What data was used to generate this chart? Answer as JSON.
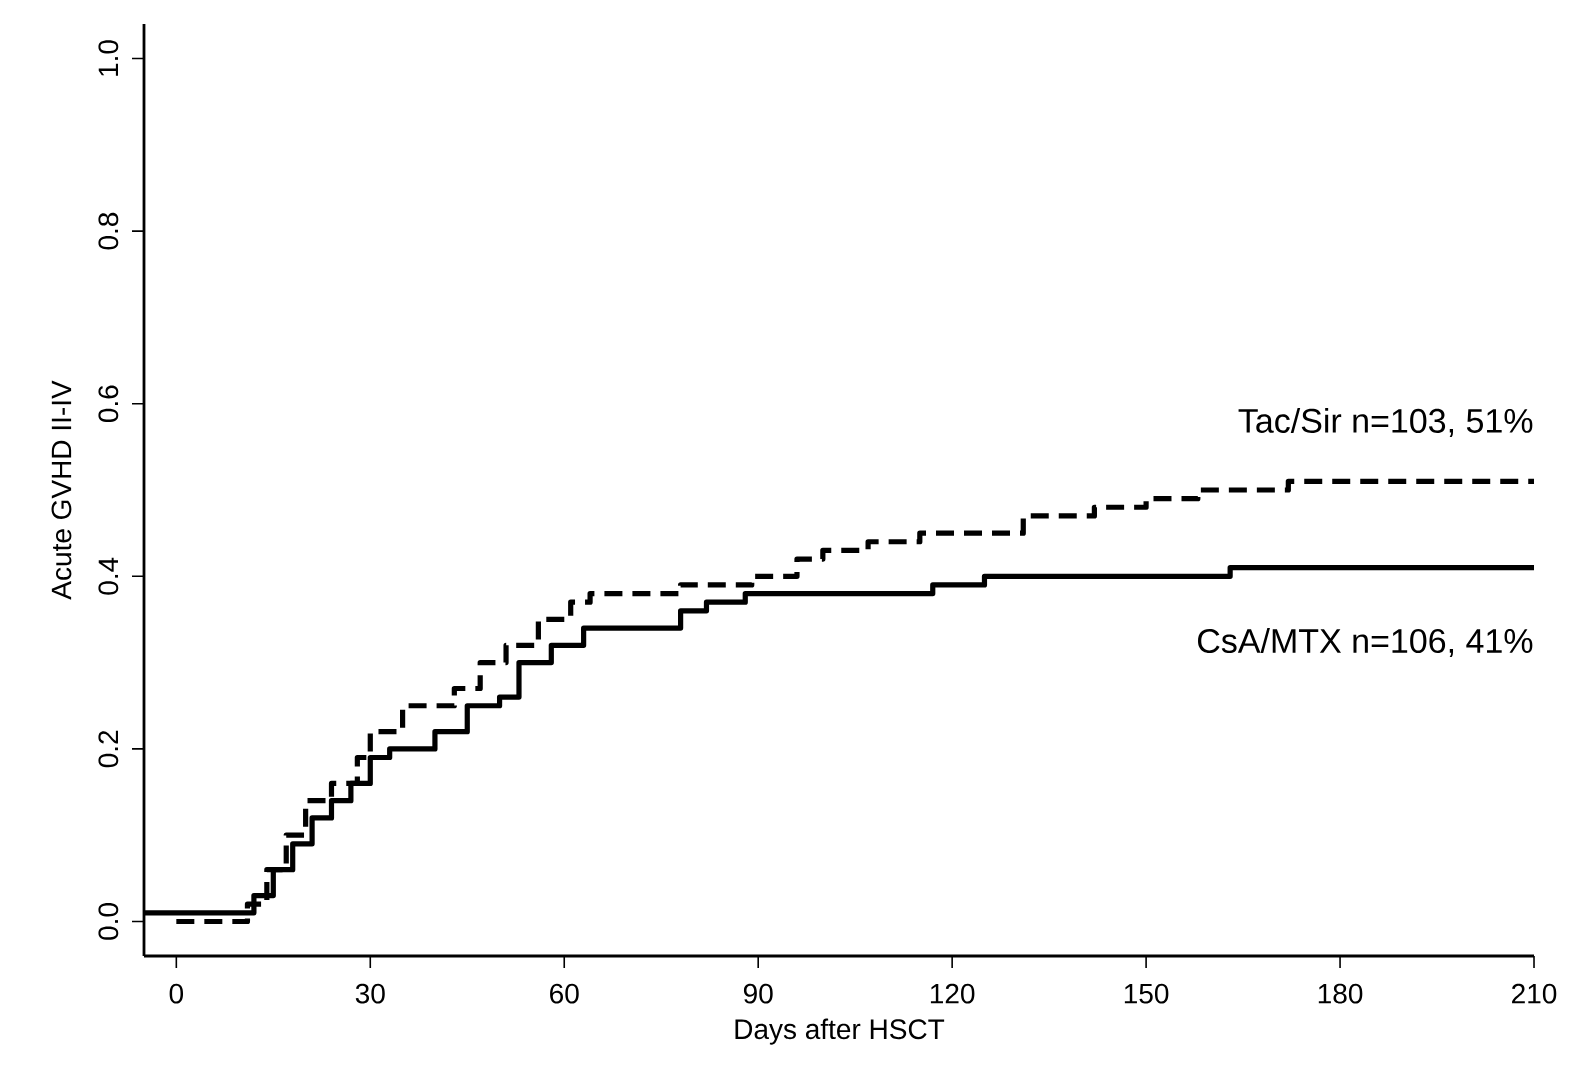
{
  "chart_data": {
    "type": "step",
    "xlabel": "Days after HSCT",
    "ylabel": "Acute GVHD II-IV",
    "xlim": [
      -5,
      210
    ],
    "ylim": [
      -0.04,
      1.04
    ],
    "xticks": [
      0,
      30,
      60,
      90,
      120,
      150,
      180,
      210
    ],
    "yticks": [
      {
        "value": 0,
        "label": "0.0"
      },
      {
        "value": 0.2,
        "label": "0.2"
      },
      {
        "value": 0.4,
        "label": "0.4"
      },
      {
        "value": 0.6,
        "label": "0.6"
      },
      {
        "value": 0.8,
        "label": "0.8"
      },
      {
        "value": 1,
        "label": "1.0"
      }
    ],
    "series": [
      {
        "name": "Tac/Sir n=103, 51%",
        "color": "#000000",
        "line_style": "dashed",
        "x": [
          0,
          11,
          14,
          17,
          20,
          24,
          28,
          30,
          35,
          43,
          47,
          51,
          56,
          61,
          64,
          78,
          89,
          96,
          100,
          107,
          115,
          131,
          142,
          150,
          158,
          172,
          210
        ],
        "values": [
          0.0,
          0.02,
          0.06,
          0.1,
          0.14,
          0.16,
          0.19,
          0.22,
          0.25,
          0.27,
          0.3,
          0.32,
          0.35,
          0.37,
          0.38,
          0.39,
          0.4,
          0.42,
          0.43,
          0.44,
          0.45,
          0.47,
          0.48,
          0.49,
          0.5,
          0.51,
          0.51
        ]
      },
      {
        "name": "CsA/MTX n=106, 41%",
        "color": "#000000",
        "line_style": "solid",
        "x": [
          -5,
          12,
          15,
          18,
          21,
          24,
          27,
          30,
          33,
          40,
          45,
          50,
          53,
          58,
          63,
          78,
          82,
          88,
          117,
          125,
          163,
          210
        ],
        "values": [
          0.01,
          0.03,
          0.06,
          0.09,
          0.12,
          0.14,
          0.16,
          0.19,
          0.2,
          0.22,
          0.25,
          0.26,
          0.3,
          0.32,
          0.34,
          0.36,
          0.37,
          0.38,
          0.39,
          0.4,
          0.41,
          0.41
        ]
      }
    ]
  }
}
